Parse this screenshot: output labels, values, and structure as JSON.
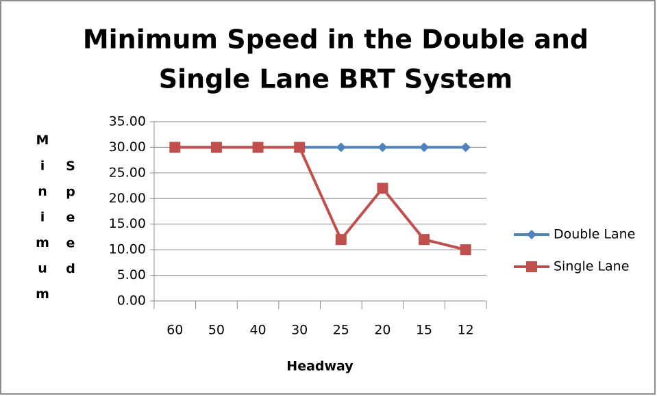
{
  "chart_data": {
    "type": "line",
    "title": [
      "Minimum Speed in the Double and",
      "Single Lane BRT System"
    ],
    "x_label": "Headway",
    "y_label": [
      "Minimum",
      "Speed"
    ],
    "categories": [
      "60",
      "50",
      "40",
      "30",
      "25",
      "20",
      "15",
      "12"
    ],
    "series": [
      {
        "name": "Double Lane",
        "color": "#4f81bd",
        "marker": "diamond",
        "values": [
          30,
          30,
          30,
          30,
          30,
          30,
          30,
          30
        ]
      },
      {
        "name": "Single Lane",
        "color": "#c0504d",
        "marker": "square",
        "values": [
          30,
          30,
          30,
          30,
          12,
          22,
          12,
          10
        ]
      }
    ],
    "ylim": [
      0,
      35
    ],
    "yticks": [
      {
        "value": 0,
        "label": "0.00"
      },
      {
        "value": 5,
        "label": "5.00"
      },
      {
        "value": 10,
        "label": "10.00"
      },
      {
        "value": 15,
        "label": "15.00"
      },
      {
        "value": 20,
        "label": "20.00"
      },
      {
        "value": 25,
        "label": "25.00"
      },
      {
        "value": 30,
        "label": "30.00"
      },
      {
        "value": 35,
        "label": "35.00"
      }
    ],
    "grid": true,
    "legend": "right"
  }
}
